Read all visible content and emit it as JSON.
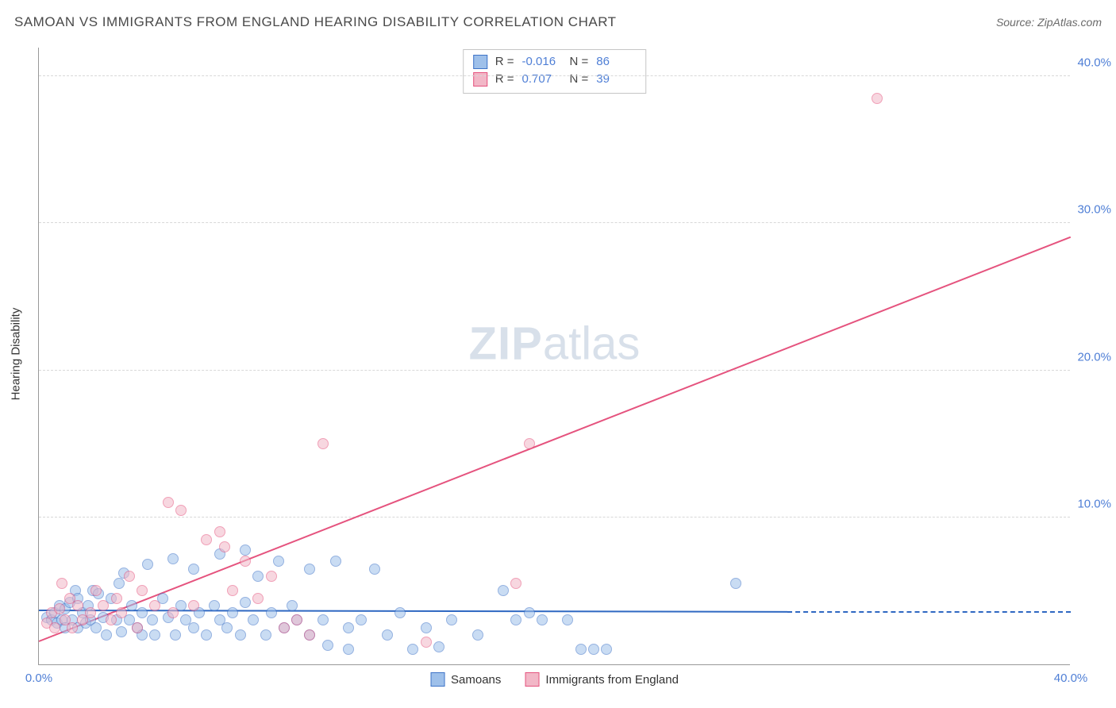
{
  "title": "SAMOAN VS IMMIGRANTS FROM ENGLAND HEARING DISABILITY CORRELATION CHART",
  "source": "Source: ZipAtlas.com",
  "ylabel": "Hearing Disability",
  "watermark_bold": "ZIP",
  "watermark_rest": "atlas",
  "chart": {
    "type": "scatter",
    "background_color": "#ffffff",
    "grid_color": "#d8d8d8",
    "axis_color": "#999999",
    "tick_label_color": "#4f7fd6",
    "title_fontsize": 17,
    "label_fontsize": 15,
    "tick_fontsize": 15,
    "xlim": [
      0,
      40
    ],
    "ylim": [
      0,
      42
    ],
    "xticks": [
      {
        "v": 0,
        "label": "0.0%"
      },
      {
        "v": 40,
        "label": "40.0%"
      }
    ],
    "yticks": [
      {
        "v": 10,
        "label": "10.0%"
      },
      {
        "v": 20,
        "label": "20.0%"
      },
      {
        "v": 30,
        "label": "30.0%"
      },
      {
        "v": 40,
        "label": "40.0%"
      }
    ],
    "point_radius": 7,
    "point_opacity": 0.55,
    "line_width": 2
  },
  "series": [
    {
      "id": "samoans",
      "label": "Samoans",
      "fill_color": "#9ec0ea",
      "stroke_color": "#3f74c8",
      "line_color": "#2f68c2",
      "R": "-0.016",
      "N": "86",
      "trend": {
        "x1": 0,
        "y1": 3.6,
        "x2": 29,
        "y2": 3.5,
        "dash_to_x": 40
      },
      "points": [
        [
          0.3,
          3.2
        ],
        [
          0.5,
          3.0
        ],
        [
          0.6,
          3.5
        ],
        [
          0.7,
          2.8
        ],
        [
          0.8,
          4.0
        ],
        [
          0.9,
          3.0
        ],
        [
          1.0,
          2.5
        ],
        [
          1.0,
          3.8
        ],
        [
          1.2,
          4.2
        ],
        [
          1.3,
          3.0
        ],
        [
          1.4,
          5.0
        ],
        [
          1.5,
          2.5
        ],
        [
          1.5,
          4.5
        ],
        [
          1.7,
          3.5
        ],
        [
          1.8,
          2.8
        ],
        [
          1.9,
          4.0
        ],
        [
          2.0,
          3.0
        ],
        [
          2.1,
          5.0
        ],
        [
          2.2,
          2.5
        ],
        [
          2.3,
          4.8
        ],
        [
          2.5,
          3.2
        ],
        [
          2.6,
          2.0
        ],
        [
          2.8,
          4.5
        ],
        [
          3.0,
          3.0
        ],
        [
          3.1,
          5.5
        ],
        [
          3.2,
          2.2
        ],
        [
          3.3,
          6.2
        ],
        [
          3.5,
          3.0
        ],
        [
          3.6,
          4.0
        ],
        [
          3.8,
          2.5
        ],
        [
          4.0,
          3.5
        ],
        [
          4.0,
          2.0
        ],
        [
          4.2,
          6.8
        ],
        [
          4.4,
          3.0
        ],
        [
          4.5,
          2.0
        ],
        [
          4.8,
          4.5
        ],
        [
          5.0,
          3.2
        ],
        [
          5.2,
          7.2
        ],
        [
          5.3,
          2.0
        ],
        [
          5.5,
          4.0
        ],
        [
          5.7,
          3.0
        ],
        [
          6.0,
          6.5
        ],
        [
          6.0,
          2.5
        ],
        [
          6.2,
          3.5
        ],
        [
          6.5,
          2.0
        ],
        [
          6.8,
          4.0
        ],
        [
          7.0,
          7.5
        ],
        [
          7.0,
          3.0
        ],
        [
          7.3,
          2.5
        ],
        [
          7.5,
          3.5
        ],
        [
          7.8,
          2.0
        ],
        [
          8.0,
          4.2
        ],
        [
          8.0,
          7.8
        ],
        [
          8.3,
          3.0
        ],
        [
          8.5,
          6.0
        ],
        [
          8.8,
          2.0
        ],
        [
          9.0,
          3.5
        ],
        [
          9.3,
          7.0
        ],
        [
          9.5,
          2.5
        ],
        [
          9.8,
          4.0
        ],
        [
          10.0,
          3.0
        ],
        [
          10.5,
          6.5
        ],
        [
          10.5,
          2.0
        ],
        [
          11.0,
          3.0
        ],
        [
          11.2,
          1.3
        ],
        [
          11.5,
          7.0
        ],
        [
          12.0,
          2.5
        ],
        [
          12.0,
          1.0
        ],
        [
          12.5,
          3.0
        ],
        [
          13.0,
          6.5
        ],
        [
          13.5,
          2.0
        ],
        [
          14.0,
          3.5
        ],
        [
          14.5,
          1.0
        ],
        [
          15.0,
          2.5
        ],
        [
          15.5,
          1.2
        ],
        [
          16.0,
          3.0
        ],
        [
          17.0,
          2.0
        ],
        [
          18.0,
          5.0
        ],
        [
          18.5,
          3.0
        ],
        [
          19.0,
          3.5
        ],
        [
          19.5,
          3.0
        ],
        [
          20.5,
          3.0
        ],
        [
          21.0,
          1.0
        ],
        [
          21.5,
          1.0
        ],
        [
          22.0,
          1.0
        ],
        [
          27.0,
          5.5
        ]
      ]
    },
    {
      "id": "immigrants",
      "label": "Immigrants from England",
      "fill_color": "#f2b7c7",
      "stroke_color": "#e5537e",
      "line_color": "#e5537e",
      "R": "0.707",
      "N": "39",
      "trend": {
        "x1": 0,
        "y1": 1.5,
        "x2": 40,
        "y2": 29.0
      },
      "points": [
        [
          0.3,
          2.8
        ],
        [
          0.5,
          3.5
        ],
        [
          0.6,
          2.5
        ],
        [
          0.8,
          3.8
        ],
        [
          0.9,
          5.5
        ],
        [
          1.0,
          3.0
        ],
        [
          1.2,
          4.5
        ],
        [
          1.3,
          2.5
        ],
        [
          1.5,
          4.0
        ],
        [
          1.7,
          3.0
        ],
        [
          2.0,
          3.5
        ],
        [
          2.2,
          5.0
        ],
        [
          2.5,
          4.0
        ],
        [
          2.8,
          3.0
        ],
        [
          3.0,
          4.5
        ],
        [
          3.2,
          3.5
        ],
        [
          3.5,
          6.0
        ],
        [
          3.8,
          2.5
        ],
        [
          4.0,
          5.0
        ],
        [
          4.5,
          4.0
        ],
        [
          5.0,
          11.0
        ],
        [
          5.2,
          3.5
        ],
        [
          5.5,
          10.5
        ],
        [
          6.0,
          4.0
        ],
        [
          6.5,
          8.5
        ],
        [
          7.0,
          9.0
        ],
        [
          7.2,
          8.0
        ],
        [
          7.5,
          5.0
        ],
        [
          8.0,
          7.0
        ],
        [
          8.5,
          4.5
        ],
        [
          9.0,
          6.0
        ],
        [
          9.5,
          2.5
        ],
        [
          10.0,
          3.0
        ],
        [
          10.5,
          2.0
        ],
        [
          11.0,
          15.0
        ],
        [
          15.0,
          1.5
        ],
        [
          18.5,
          5.5
        ],
        [
          19.0,
          15.0
        ],
        [
          32.5,
          38.5
        ]
      ]
    }
  ],
  "stats_legend": {
    "rows": [
      {
        "series_idx": 0,
        "R_label": "R =",
        "N_label": "N ="
      },
      {
        "series_idx": 1,
        "R_label": "R =",
        "N_label": "N ="
      }
    ]
  }
}
